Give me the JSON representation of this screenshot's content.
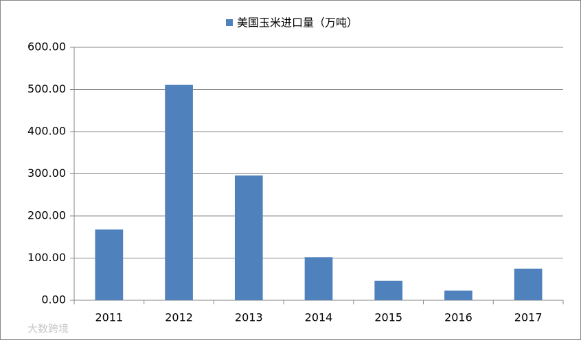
{
  "chart_data": {
    "type": "bar",
    "legend": "美国玉米进口量（万吨）",
    "categories": [
      "2011",
      "2012",
      "2013",
      "2014",
      "2015",
      "2016",
      "2017"
    ],
    "values": [
      168,
      511,
      296,
      102,
      46,
      23,
      75
    ],
    "color": "#4f81bd",
    "ylim": [
      0,
      600
    ],
    "yticks": [
      {
        "value": 0,
        "label": "0.00"
      },
      {
        "value": 100,
        "label": "100.00"
      },
      {
        "value": 200,
        "label": "200.00"
      },
      {
        "value": 300,
        "label": "300.00"
      },
      {
        "value": 400,
        "label": "400.00"
      },
      {
        "value": 500,
        "label": "500.00"
      },
      {
        "value": 600,
        "label": "600.00"
      }
    ],
    "grid": true
  },
  "watermark": "大数跨境"
}
